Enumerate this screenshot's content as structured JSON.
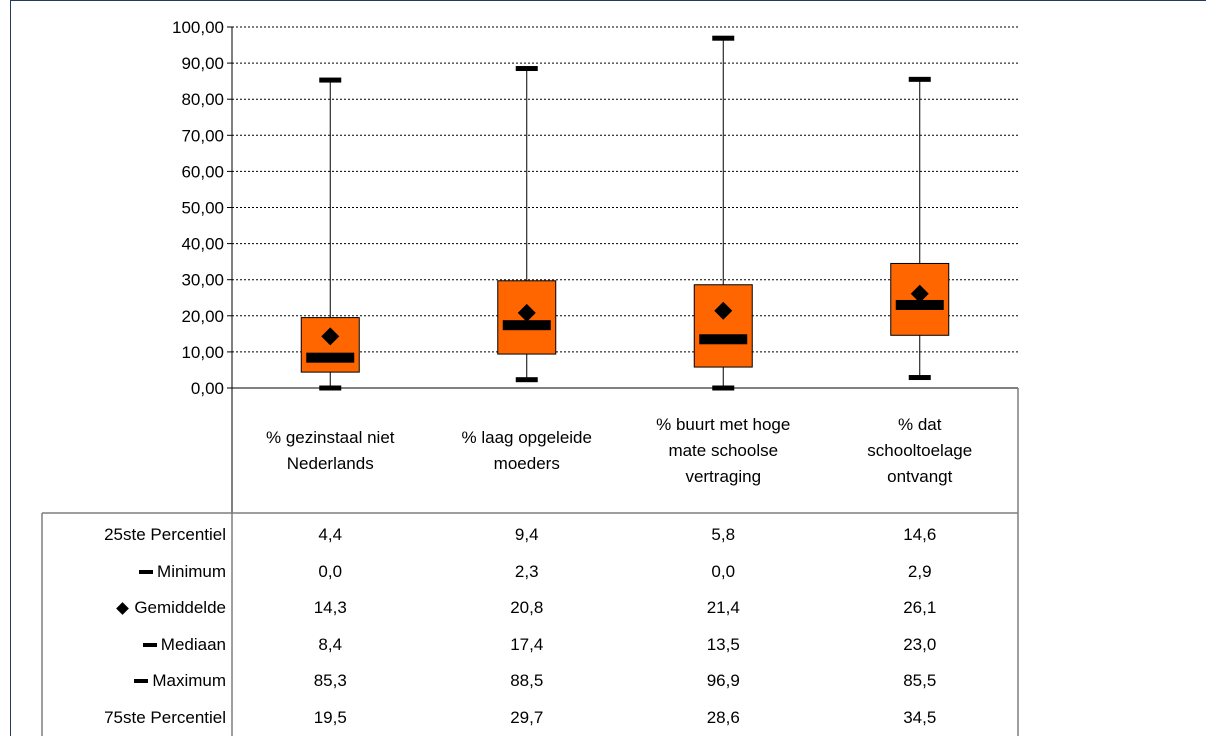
{
  "chart_data": {
    "type": "boxplot",
    "ylim": [
      0,
      100
    ],
    "y_ticks": [
      "0,00",
      "10,00",
      "20,00",
      "30,00",
      "40,00",
      "50,00",
      "60,00",
      "70,00",
      "80,00",
      "90,00",
      "100,00"
    ],
    "categories": [
      "% gezinstaal niet Nederlands",
      "% laag opgeleide moeders",
      "% buurt met hoge mate schoolse vertraging",
      "% dat schooltoelage ontvangt"
    ],
    "box_color": "#ff6600",
    "series": [
      {
        "name": "25ste Percentiel",
        "values": [
          4.4,
          9.4,
          5.8,
          14.6
        ],
        "display": [
          "4,4",
          "9,4",
          "5,8",
          "14,6"
        ],
        "marker": "none"
      },
      {
        "name": "Minimum",
        "values": [
          0.0,
          2.3,
          0.0,
          2.9
        ],
        "display": [
          "0,0",
          "2,3",
          "0,0",
          "2,9"
        ],
        "marker": "dash"
      },
      {
        "name": "Gemiddelde",
        "values": [
          14.3,
          20.8,
          21.4,
          26.1
        ],
        "display": [
          "14,3",
          "20,8",
          "21,4",
          "26,1"
        ],
        "marker": "diamond"
      },
      {
        "name": "Mediaan",
        "values": [
          8.4,
          17.4,
          13.5,
          23.0
        ],
        "display": [
          "8,4",
          "17,4",
          "13,5",
          "23,0"
        ],
        "marker": "dash"
      },
      {
        "name": "Maximum",
        "values": [
          85.3,
          88.5,
          96.9,
          85.5
        ],
        "display": [
          "85,3",
          "88,5",
          "96,9",
          "85,5"
        ],
        "marker": "dash"
      },
      {
        "name": "75ste Percentiel",
        "values": [
          19.5,
          29.7,
          28.6,
          34.5
        ],
        "display": [
          "19,5",
          "29,7",
          "28,6",
          "34,5"
        ],
        "marker": "none"
      }
    ],
    "grid": true,
    "legend": "data-table-below"
  }
}
